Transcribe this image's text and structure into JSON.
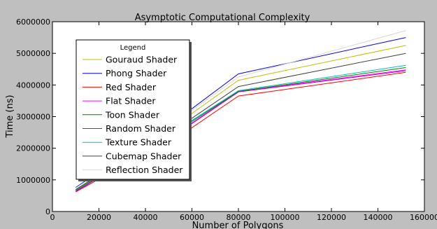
{
  "chart_data": {
    "type": "line",
    "title": "Asymptotic Computational Complexity",
    "xlabel": "Number of Polygons",
    "ylabel": "Time (ns)",
    "xlim": [
      0,
      160000
    ],
    "ylim": [
      0,
      6000000
    ],
    "xticks": [
      0,
      20000,
      40000,
      60000,
      80000,
      100000,
      120000,
      140000,
      160000
    ],
    "yticks": [
      0,
      1000000,
      2000000,
      3000000,
      4000000,
      5000000,
      6000000
    ],
    "x": [
      10000,
      60000,
      80000,
      152000
    ],
    "grid": false,
    "legend": {
      "title": "Legend",
      "position": "upper-left"
    },
    "series": [
      {
        "name": "Gouraud Shader",
        "color": "#bfbf00",
        "values": [
          700000,
          3100000,
          4150000,
          5250000
        ]
      },
      {
        "name": "Phong Shader",
        "color": "#0000ff",
        "values": [
          760000,
          3250000,
          4350000,
          5500000
        ]
      },
      {
        "name": "Red Shader",
        "color": "#ff0000",
        "values": [
          620000,
          2650000,
          3650000,
          4400000
        ]
      },
      {
        "name": "Flat Shader",
        "color": "#ff00ff",
        "values": [
          650000,
          2800000,
          3800000,
          4480000
        ]
      },
      {
        "name": "Toon Shader",
        "color": "#008000",
        "values": [
          660000,
          2850000,
          3800000,
          4550000
        ]
      },
      {
        "name": "Random Shader",
        "color": "#bf00bf",
        "values": [
          640000,
          2780000,
          3780000,
          4450000
        ]
      },
      {
        "name": "Texture Shader",
        "color": "#00bfbf",
        "values": [
          670000,
          2880000,
          3820000,
          4620000
        ]
      },
      {
        "name": "Cubemap Shader",
        "color": "#404040",
        "values": [
          690000,
          2950000,
          3950000,
          5000000
        ]
      },
      {
        "name": "Reflection Shader",
        "color": "#d8d8d8",
        "values": [
          740000,
          3200000,
          4250000,
          5720000
        ]
      }
    ]
  }
}
